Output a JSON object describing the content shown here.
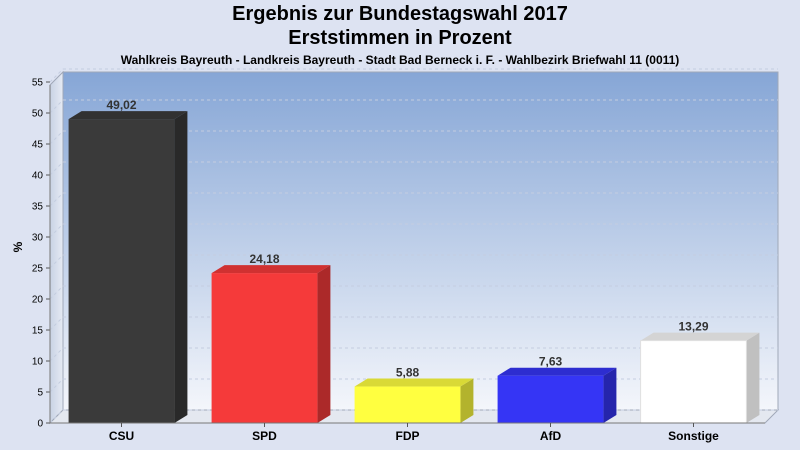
{
  "chart_data": {
    "type": "bar",
    "title": "Ergebnis zur Bundestagswahl 2017",
    "subtitle": "Erststimmen in Prozent",
    "caption": "Wahlkreis Bayreuth - Landkreis Bayreuth - Stadt Bad Berneck i. F. - Wahlbezirk Briefwahl 11 (0011)",
    "ylabel": "%",
    "xlabel": "",
    "ylim": [
      0,
      55
    ],
    "yticks": [
      0,
      5,
      10,
      15,
      20,
      25,
      30,
      35,
      40,
      45,
      50,
      55
    ],
    "grid": true,
    "categories": [
      "CSU",
      "SPD",
      "FDP",
      "AfD",
      "Sonstige"
    ],
    "values": [
      49.02,
      24.18,
      5.88,
      7.63,
      13.29
    ],
    "value_labels": [
      "49,02",
      "24,18",
      "5,88",
      "7,63",
      "13,29"
    ],
    "colors": [
      "#3a3a3a",
      "#f53a3a",
      "#ffff40",
      "#3535f5",
      "#ffffff"
    ]
  }
}
